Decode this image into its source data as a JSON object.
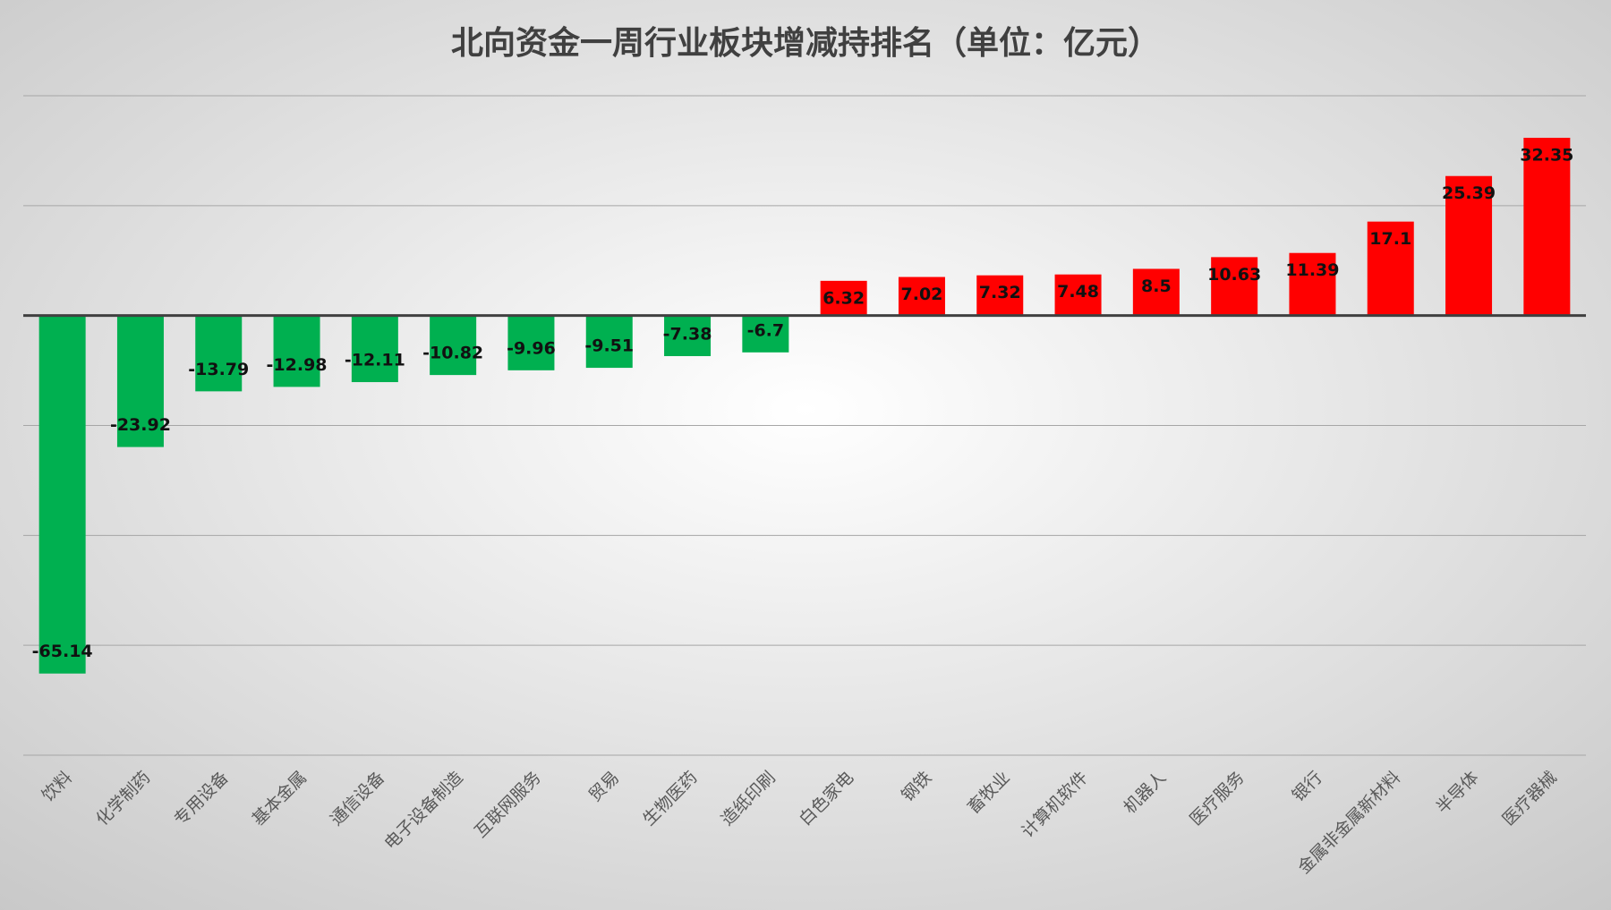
{
  "chart_data": {
    "type": "bar",
    "title": "北向资金一周行业板块增减持排名（单位：亿元）",
    "categories": [
      "饮料",
      "化学制药",
      "专用设备",
      "基本金属",
      "通信设备",
      "电子设备制造",
      "互联网服务",
      "贸易",
      "生物医药",
      "造纸印刷",
      "白色家电",
      "钢铁",
      "畜牧业",
      "计算机软件",
      "机器人",
      "医疗服务",
      "银行",
      "金属非金属新材料",
      "半导体",
      "医疗器械"
    ],
    "values": [
      -65.14,
      -23.92,
      -13.79,
      -12.98,
      -12.11,
      -10.82,
      -9.96,
      -9.51,
      -7.38,
      -6.7,
      6.32,
      7.02,
      7.32,
      7.48,
      8.5,
      10.63,
      11.39,
      17.1,
      25.39,
      32.35
    ],
    "color_positive": "#ff0000",
    "color_negative": "#00b050",
    "ylim": [
      -80,
      40
    ],
    "yticks": [
      -80,
      -60,
      -40,
      -20,
      0,
      20,
      40
    ],
    "grid": true
  }
}
